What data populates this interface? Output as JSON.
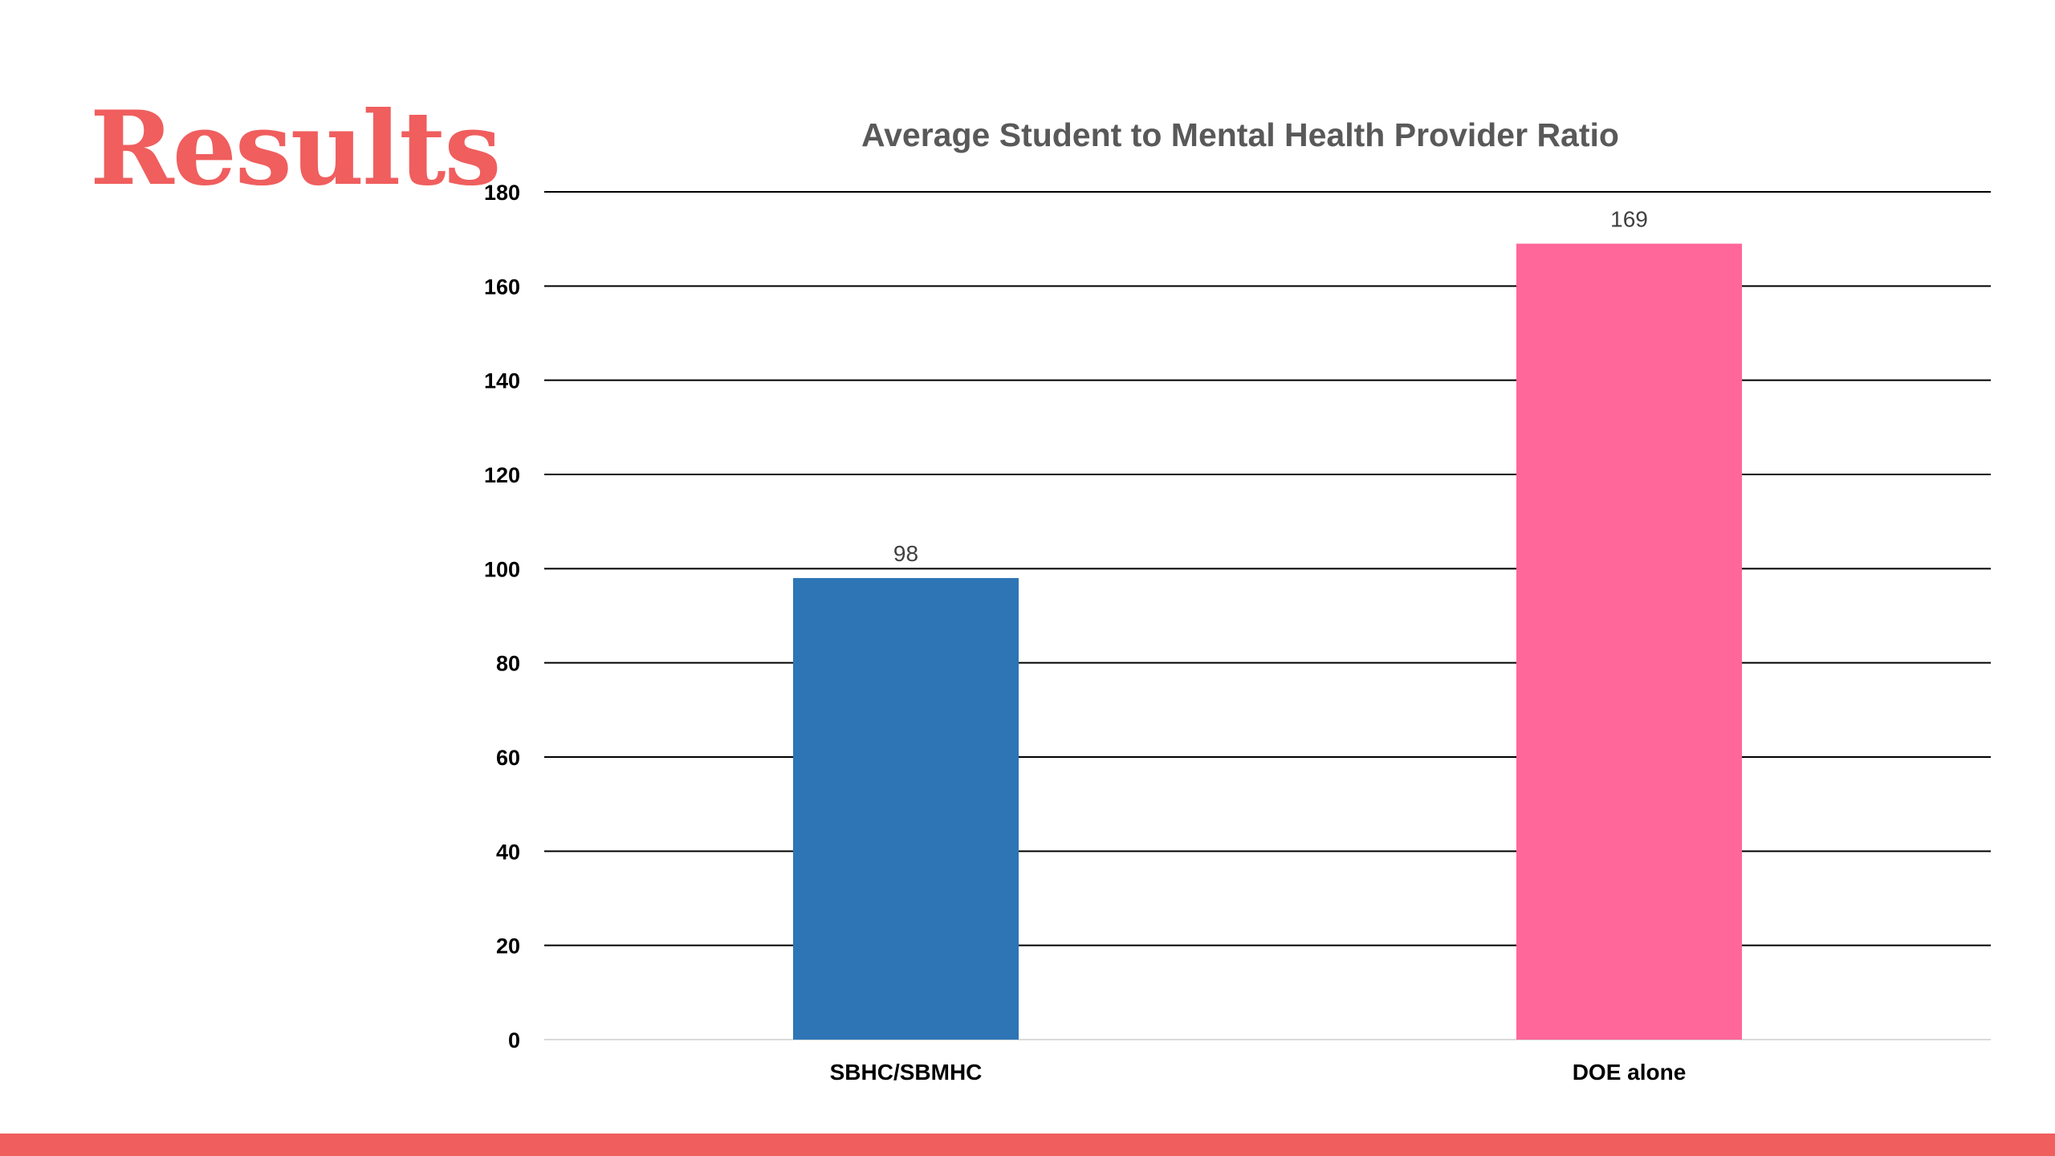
{
  "slide": {
    "title": "Results",
    "title_color": "#f05e5e",
    "bottom_bar_color": "#f05e5e"
  },
  "chart_data": {
    "type": "bar",
    "title": "Average Student to Mental Health Provider Ratio",
    "categories": [
      "SBHC/SBMHC",
      "DOE alone"
    ],
    "values": [
      98,
      169
    ],
    "bar_colors": [
      "#2e75b6",
      "#ff6699"
    ],
    "data_labels": [
      "98",
      "169"
    ],
    "y_ticks": [
      0,
      20,
      40,
      60,
      80,
      100,
      120,
      140,
      160,
      180
    ],
    "ylim": [
      0,
      180
    ],
    "grid": true,
    "legend": "none",
    "xlabel": "",
    "ylabel": ""
  }
}
